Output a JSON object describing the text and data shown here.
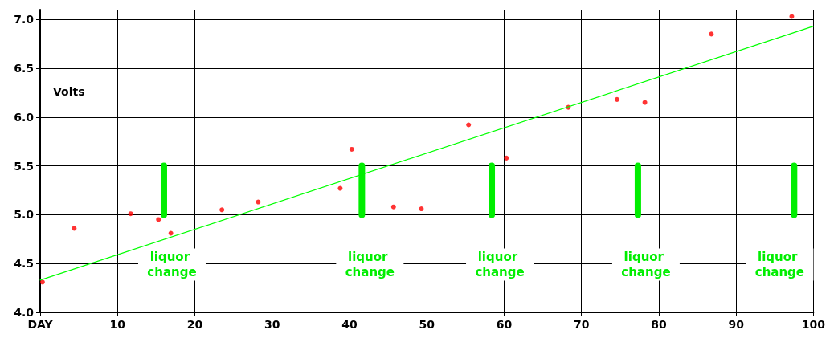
{
  "chart_data": {
    "type": "scatter",
    "ylabel": "Volts",
    "xlim": [
      0,
      100
    ],
    "xticks": [
      {
        "value": 0,
        "label": "DAY"
      },
      10,
      20,
      30,
      40,
      50,
      60,
      70,
      80,
      90,
      100
    ],
    "ylim": [
      4,
      7.1
    ],
    "yticks": [
      {
        "value": 4,
        "label": "4.0"
      },
      4.5,
      {
        "value": 5,
        "label": "5.0"
      },
      5.5,
      {
        "value": 6,
        "label": "6.0"
      },
      6.5,
      {
        "value": 7,
        "label": "7.0"
      }
    ],
    "grid": true,
    "marker": "circle",
    "series": [
      {
        "color": "#ff0000",
        "x": [
          0.3,
          4.4,
          11.7,
          15.3,
          16.9,
          23.5,
          28.2,
          38.8,
          40.3,
          45.7,
          49.3,
          55.4,
          60.3,
          68.3,
          74.6,
          78.2,
          86.8,
          97.2
        ],
        "values": [
          4.31,
          4.86,
          5.01,
          4.95,
          4.81,
          5.05,
          5.13,
          5.27,
          5.67,
          5.08,
          5.06,
          5.92,
          5.58,
          6.1,
          6.18,
          6.15,
          6.85,
          7.03
        ]
      },
      {
        "type": "line",
        "marker": "none",
        "color": "#00ff00",
        "x": [
          0,
          100
        ],
        "values": [
          4.33,
          6.93
        ]
      },
      {
        "type": "line",
        "marker": "none",
        "color": "#00ee00",
        "x": [
          16,
          16
        ],
        "values": [
          5,
          5.5
        ]
      },
      {
        "type": "line",
        "marker": "none",
        "color": "#00ee00",
        "x": [
          41.6,
          41.6
        ],
        "values": [
          5,
          5.5
        ]
      },
      {
        "type": "line",
        "marker": "none",
        "color": "#00ee00",
        "x": [
          58.4,
          58.4
        ],
        "values": [
          5,
          5.5
        ]
      },
      {
        "type": "line",
        "marker": "none",
        "color": "#00ee00",
        "x": [
          77.3,
          77.3
        ],
        "values": [
          5,
          5.5
        ]
      },
      {
        "type": "line",
        "marker": "none",
        "color": "#00ee00",
        "x": [
          97.5,
          97.5
        ],
        "values": [
          5,
          5.5
        ]
      }
    ],
    "annotations": [
      {
        "text": "liquor change",
        "x": 16,
        "y": 5
      },
      {
        "text": "liquor change",
        "x": 41.6,
        "y": 5
      },
      {
        "text": "liquor change",
        "x": 58.4,
        "y": 5
      },
      {
        "text": "liquor change",
        "x": 77.3,
        "y": 5
      },
      {
        "text": "liquor change",
        "x": 97.5,
        "y": 5
      }
    ]
  }
}
